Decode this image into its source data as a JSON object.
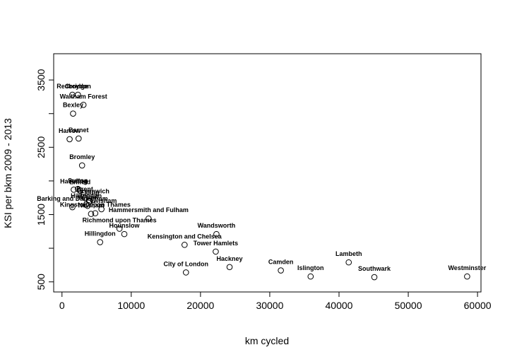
{
  "chart_data": {
    "type": "scatter",
    "title": "",
    "xlabel": "km cycled",
    "ylabel": "KSI per bkm 2009 - 2013",
    "xlim": [
      -1200,
      60500
    ],
    "ylim": [
      350,
      3890
    ],
    "x_ticks": [
      0,
      10000,
      20000,
      30000,
      40000,
      50000,
      60000
    ],
    "x_tick_labels": [
      "0",
      "10000",
      "20000",
      "30000",
      "40000",
      "50000",
      "60000"
    ],
    "y_ticks": [
      500,
      1000,
      1500,
      2000,
      2500,
      3000,
      3500
    ],
    "y_tick_labels": [
      "500",
      "",
      "1500",
      "",
      "2500",
      "",
      "3500"
    ],
    "grid": false,
    "legend": "none",
    "point_style": "open-circle",
    "points": [
      {
        "label": "Redbridge",
        "x": 1500,
        "y": 3280
      },
      {
        "label": "Croydon",
        "x": 2300,
        "y": 3280
      },
      {
        "label": "Waltham Forest",
        "x": 3100,
        "y": 3130
      },
      {
        "label": "Bexley",
        "x": 1600,
        "y": 3000
      },
      {
        "label": "Harrow",
        "x": 1100,
        "y": 2620
      },
      {
        "label": "Barnet",
        "x": 2400,
        "y": 2630
      },
      {
        "label": "Bromley",
        "x": 2900,
        "y": 2230
      },
      {
        "label": "Sutton",
        "x": 2300,
        "y": 1880
      },
      {
        "label": "Havering",
        "x": 1700,
        "y": 1870
      },
      {
        "label": "Enfield",
        "x": 2600,
        "y": 1860
      },
      {
        "label": "Brent",
        "x": 3300,
        "y": 1750
      },
      {
        "label": "Ealing",
        "x": 4000,
        "y": 1700
      },
      {
        "label": "Greenwich",
        "x": 4500,
        "y": 1720
      },
      {
        "label": "Hillingdon",
        "x": 3500,
        "y": 1650
      },
      {
        "label": "Merton",
        "x": 3700,
        "y": 1630
      },
      {
        "label": "Barking and Dagenham",
        "x": 1500,
        "y": 1610
      },
      {
        "label": "Lewisham",
        "x": 5700,
        "y": 1580
      },
      {
        "label": "Kingston upon Thames",
        "x": 4800,
        "y": 1520
      },
      {
        "label": "Newham",
        "x": 4200,
        "y": 1510
      },
      {
        "label": "Hammersmith and Fulham",
        "x": 12500,
        "y": 1440
      },
      {
        "label": "Wandsworth",
        "x": 22300,
        "y": 1210
      },
      {
        "label": "Richmond upon Thames",
        "x": 8300,
        "y": 1290
      },
      {
        "label": "Hounslow",
        "x": 9000,
        "y": 1210
      },
      {
        "label": "Kensington and Chelsea",
        "x": 17700,
        "y": 1050
      },
      {
        "label": "Hillingdon",
        "x": 5500,
        "y": 1090
      },
      {
        "label": "Tower Hamlets",
        "x": 22200,
        "y": 950
      },
      {
        "label": "Hackney",
        "x": 24200,
        "y": 720
      },
      {
        "label": "City of London",
        "x": 17900,
        "y": 640
      },
      {
        "label": "Camden",
        "x": 31600,
        "y": 670
      },
      {
        "label": "Islington",
        "x": 35900,
        "y": 580
      },
      {
        "label": "Lambeth",
        "x": 41400,
        "y": 790
      },
      {
        "label": "Southwark",
        "x": 45100,
        "y": 570
      },
      {
        "label": "Westminster",
        "x": 58500,
        "y": 580
      }
    ]
  }
}
